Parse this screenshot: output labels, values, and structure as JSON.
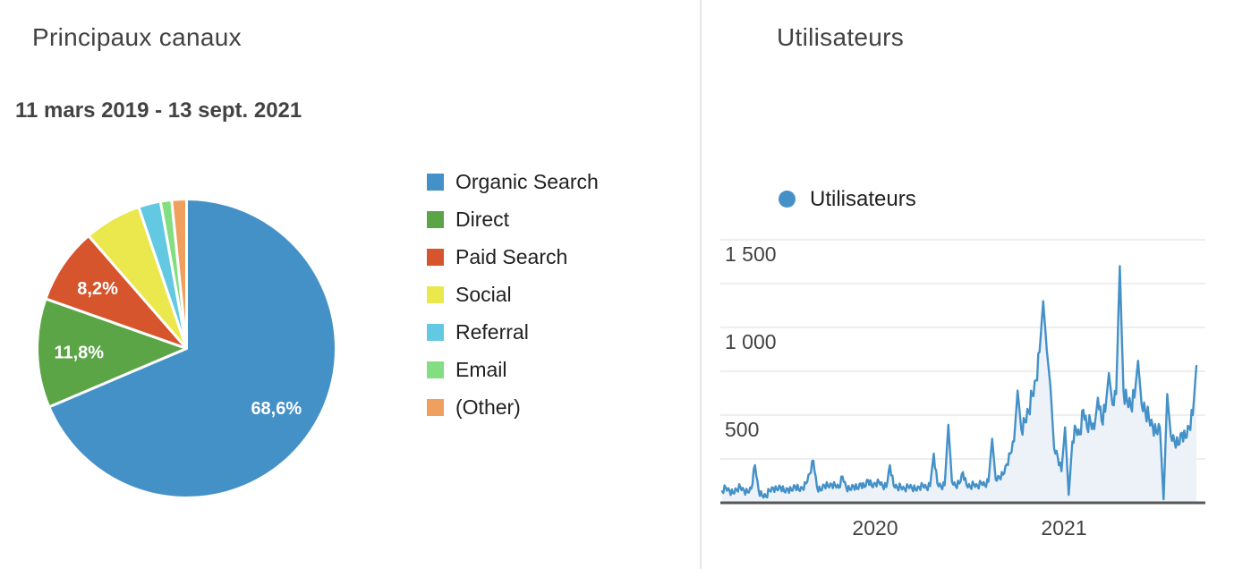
{
  "chart_data": [
    {
      "type": "pie",
      "title": "Principaux canaux",
      "subtitle": "11 mars 2019 - 13 sept. 2021",
      "direction": "clockwise",
      "start_angle_deg": 0,
      "legend_position": "right",
      "slices": [
        {
          "label": "Organic Search",
          "value": 68.6,
          "display": "68,6%",
          "color": "#4491c8"
        },
        {
          "label": "Direct",
          "value": 11.8,
          "display": "11,8%",
          "color": "#5ca547"
        },
        {
          "label": "Paid Search",
          "value": 8.2,
          "display": "8,2%",
          "color": "#d6552d"
        },
        {
          "label": "Social",
          "value": 6.2,
          "display": "",
          "color": "#ebe84d"
        },
        {
          "label": "Referral",
          "value": 2.4,
          "display": "",
          "color": "#63c8e2"
        },
        {
          "label": "Email",
          "value": 1.2,
          "display": "",
          "color": "#82de80"
        },
        {
          "label": "(Other)",
          "value": 1.6,
          "display": "",
          "color": "#f0a05e"
        }
      ]
    },
    {
      "type": "area",
      "title": "Utilisateurs",
      "series_name": "Utilisateurs",
      "x_start": "11 mars 2019",
      "x_end": "13 sept. 2021",
      "sampling": "weekly",
      "x_tick_labels": [
        "2020",
        "2021"
      ],
      "y_tick_labels": [
        "500",
        "1 000",
        "1 500"
      ],
      "y_tick_values": [
        500,
        1000,
        1500
      ],
      "ylim": [
        0,
        1500
      ],
      "grid_step": 250,
      "grid_on": true,
      "line_color": "#4491c8",
      "fill_color": "#edf2f8",
      "values": [
        65,
        85,
        70,
        55,
        75,
        90,
        70,
        60,
        80,
        215,
        70,
        40,
        35,
        70,
        85,
        75,
        90,
        65,
        80,
        70,
        95,
        75,
        85,
        110,
        165,
        240,
        90,
        70,
        100,
        95,
        105,
        100,
        85,
        150,
        90,
        75,
        95,
        80,
        110,
        90,
        130,
        95,
        110,
        120,
        95,
        90,
        215,
        100,
        85,
        90,
        80,
        95,
        85,
        75,
        90,
        100,
        85,
        95,
        280,
        110,
        90,
        100,
        445,
        120,
        95,
        110,
        175,
        100,
        90,
        105,
        95,
        115,
        100,
        120,
        365,
        130,
        145,
        160,
        220,
        280,
        350,
        640,
        420,
        460,
        520,
        610,
        700,
        860,
        1150,
        870,
        660,
        310,
        260,
        180,
        430,
        45,
        350,
        420,
        390,
        530,
        430,
        460,
        420,
        600,
        470,
        520,
        740,
        560,
        620,
        1350,
        640,
        580,
        550,
        600,
        810,
        560,
        520,
        480,
        440,
        400,
        430,
        20,
        620,
        380,
        350,
        330,
        400,
        370,
        430,
        500,
        780
      ]
    }
  ]
}
